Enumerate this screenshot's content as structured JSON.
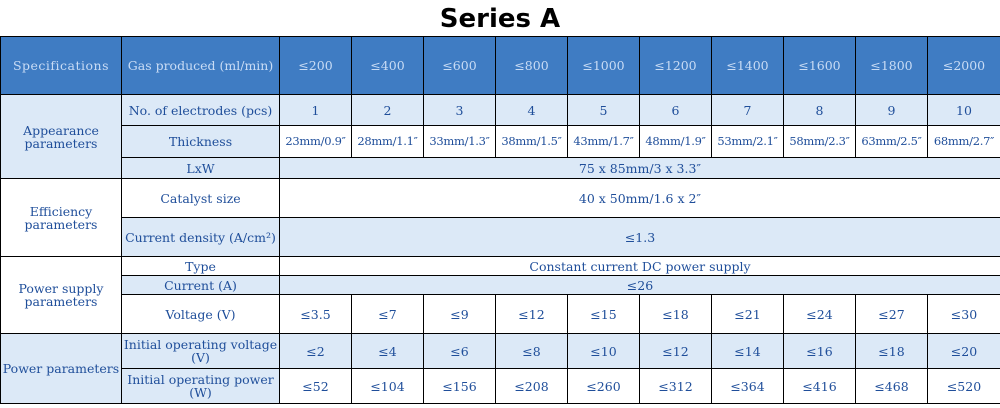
{
  "title": "Series A",
  "header": {
    "specifications": "Specifications",
    "gas_produced": "Gas produced (ml/min)",
    "gas_values": [
      "≤200",
      "≤400",
      "≤600",
      "≤800",
      "≤1000",
      "≤1200",
      "≤1400",
      "≤1600",
      "≤1800",
      "≤2000"
    ]
  },
  "appearance": {
    "group": "Appearance parameters",
    "electrodes_label": "No. of electrodes (pcs)",
    "electrodes": [
      "1",
      "2",
      "3",
      "4",
      "5",
      "6",
      "7",
      "8",
      "9",
      "10"
    ],
    "thickness_label": "Thickness",
    "thickness": [
      "23mm/0.9″",
      "28mm/1.1″",
      "33mm/1.3″",
      "38mm/1.5″",
      "43mm/1.7″",
      "48mm/1.9″",
      "53mm/2.1″",
      "58mm/2.3″",
      "63mm/2.5″",
      "68mm/2.7″"
    ],
    "lxw_label": "LxW",
    "lxw": "75 x 85mm/3 x 3.3″"
  },
  "efficiency": {
    "group": "Efficiency parameters",
    "catalyst_label": "Catalyst size",
    "catalyst": "40 x 50mm/1.6 x 2″",
    "density_label": "Current density (A/cm²)",
    "density": "≤1.3"
  },
  "power_supply": {
    "group": "Power supply parameters",
    "type_label": "Type",
    "type": "Constant current DC power supply",
    "current_label": "Current (A)",
    "current": "≤26",
    "voltage_label": "Voltage (V)",
    "voltage": [
      "≤3.5",
      "≤7",
      "≤9",
      "≤12",
      "≤15",
      "≤18",
      "≤21",
      "≤24",
      "≤27",
      "≤30"
    ]
  },
  "power": {
    "group": "Power parameters",
    "init_voltage_label": "Initial operating voltage (V)",
    "init_voltage": [
      "≤2",
      "≤4",
      "≤6",
      "≤8",
      "≤10",
      "≤12",
      "≤14",
      "≤16",
      "≤18",
      "≤20"
    ],
    "init_power_label": "Initial operating power (W)",
    "init_power": [
      "≤52",
      "≤104",
      "≤156",
      "≤208",
      "≤260",
      "≤312",
      "≤364",
      "≤416",
      "≤468",
      "≤520"
    ]
  }
}
